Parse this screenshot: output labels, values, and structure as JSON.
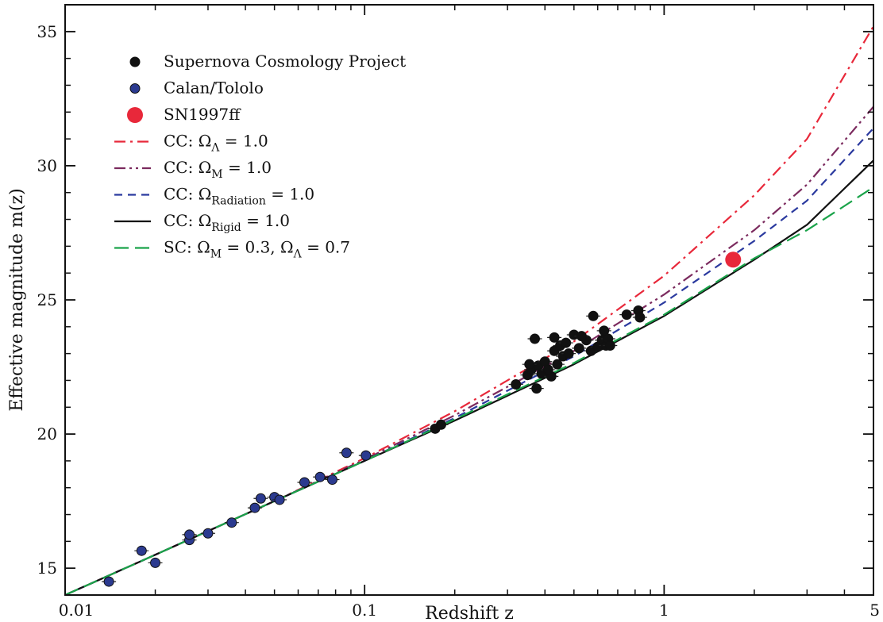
{
  "chart_data": {
    "type": "scatter",
    "xscale": "log",
    "xlim": [
      0.01,
      5
    ],
    "ylim": [
      14,
      36
    ],
    "xlabel": "Redshift z",
    "ylabel": "Effective magnitude m(z)",
    "x_ticks": [
      {
        "value": 0.01,
        "label": "0.01"
      },
      {
        "value": 0.1,
        "label": "0.1"
      },
      {
        "value": 1,
        "label": "1"
      },
      {
        "value": 5,
        "label": "5"
      }
    ],
    "y_ticks": [
      {
        "value": 15,
        "label": "15"
      },
      {
        "value": 20,
        "label": "20"
      },
      {
        "value": 25,
        "label": "25"
      },
      {
        "value": 30,
        "label": "30"
      },
      {
        "value": 35,
        "label": "35"
      }
    ],
    "grid": false,
    "legend_position": "top-left",
    "legend": [
      {
        "label": "Supernova Cosmology Project",
        "kind": "marker",
        "color": "#111111"
      },
      {
        "label": "Calan/Tololo",
        "kind": "marker",
        "color": "#2b3a8f"
      },
      {
        "label": "SN1997ff",
        "kind": "marker-large",
        "color": "#e8283a"
      },
      {
        "label_main": "CC: Ω",
        "label_sub": "Λ",
        "label_rest": " = 1.0",
        "kind": "line",
        "color": "#e8283a",
        "dash": "dashdot"
      },
      {
        "label_main": "CC: Ω",
        "label_sub": "M",
        "label_rest": " = 1.0",
        "kind": "line",
        "color": "#7b2a5e",
        "dash": "dashdotdot"
      },
      {
        "label_main": "CC: Ω",
        "label_sub": "Radiation",
        "label_rest": " = 1.0",
        "kind": "line",
        "color": "#2b3a9f",
        "dash": "dashed"
      },
      {
        "label_main": "CC: Ω",
        "label_sub": "Rigid",
        "label_rest": " = 1.0",
        "kind": "line",
        "color": "#111111",
        "dash": "solid"
      },
      {
        "label_main": "SC: Ω",
        "label_sub": "M",
        "label_rest": " = 0.3, Ω",
        "label_sub2": "Λ",
        "label_rest2": " = 0.7",
        "kind": "line",
        "color": "#1aa34a",
        "dash": "longdash"
      }
    ],
    "series": [
      {
        "name": "Supernova Cosmology Project",
        "kind": "points",
        "color": "#111111",
        "points": [
          [
            0.172,
            20.2
          ],
          [
            0.18,
            20.35
          ],
          [
            0.32,
            21.85
          ],
          [
            0.35,
            22.2
          ],
          [
            0.36,
            22.4
          ],
          [
            0.37,
            23.55
          ],
          [
            0.375,
            21.7
          ],
          [
            0.38,
            22.55
          ],
          [
            0.39,
            22.25
          ],
          [
            0.4,
            22.7
          ],
          [
            0.42,
            22.15
          ],
          [
            0.43,
            23.1
          ],
          [
            0.44,
            22.6
          ],
          [
            0.45,
            23.3
          ],
          [
            0.46,
            22.9
          ],
          [
            0.48,
            23.0
          ],
          [
            0.5,
            23.7
          ],
          [
            0.52,
            23.2
          ],
          [
            0.55,
            23.5
          ],
          [
            0.57,
            23.1
          ],
          [
            0.58,
            24.4
          ],
          [
            0.6,
            23.25
          ],
          [
            0.62,
            23.5
          ],
          [
            0.64,
            23.3
          ],
          [
            0.65,
            23.55
          ],
          [
            0.66,
            23.3
          ],
          [
            0.75,
            24.45
          ],
          [
            0.82,
            24.6
          ],
          [
            0.83,
            24.35
          ],
          [
            0.41,
            22.4
          ],
          [
            0.47,
            23.4
          ],
          [
            0.53,
            23.65
          ],
          [
            0.63,
            23.85
          ],
          [
            0.355,
            22.6
          ],
          [
            0.43,
            23.6
          ]
        ]
      },
      {
        "name": "Calan/Tololo",
        "kind": "points",
        "color": "#2b3a8f",
        "points": [
          [
            0.014,
            14.5
          ],
          [
            0.018,
            15.65
          ],
          [
            0.02,
            15.2
          ],
          [
            0.026,
            16.05
          ],
          [
            0.026,
            16.25
          ],
          [
            0.03,
            16.3
          ],
          [
            0.036,
            16.7
          ],
          [
            0.043,
            17.25
          ],
          [
            0.045,
            17.6
          ],
          [
            0.05,
            17.65
          ],
          [
            0.052,
            17.55
          ],
          [
            0.063,
            18.2
          ],
          [
            0.071,
            18.4
          ],
          [
            0.078,
            18.3
          ],
          [
            0.087,
            19.3
          ],
          [
            0.101,
            19.2
          ]
        ]
      },
      {
        "name": "SN1997ff",
        "kind": "points-large",
        "color": "#e8283a",
        "points": [
          [
            1.7,
            26.5
          ]
        ]
      },
      {
        "name": "CC: ΩΛ = 1.0",
        "kind": "line",
        "color": "#e8283a",
        "dash": "dashdot",
        "points": [
          [
            0.01,
            14.0
          ],
          [
            0.02,
            15.5
          ],
          [
            0.05,
            17.5
          ],
          [
            0.1,
            19.1
          ],
          [
            0.2,
            20.85
          ],
          [
            0.5,
            23.45
          ],
          [
            1,
            25.9
          ],
          [
            2,
            28.9
          ],
          [
            3,
            31.0
          ],
          [
            5,
            35.2
          ]
        ]
      },
      {
        "name": "CC: ΩM = 1.0",
        "kind": "line",
        "color": "#7b2a5e",
        "dash": "dashdotdot",
        "points": [
          [
            0.01,
            14.0
          ],
          [
            0.02,
            15.5
          ],
          [
            0.05,
            17.5
          ],
          [
            0.1,
            19.05
          ],
          [
            0.2,
            20.7
          ],
          [
            0.5,
            23.1
          ],
          [
            1,
            25.2
          ],
          [
            2,
            27.6
          ],
          [
            3,
            29.3
          ],
          [
            5,
            32.2
          ]
        ]
      },
      {
        "name": "CC: ΩRadiation = 1.0",
        "kind": "line",
        "color": "#2b3a9f",
        "dash": "dashed",
        "points": [
          [
            0.01,
            14.0
          ],
          [
            0.02,
            15.5
          ],
          [
            0.05,
            17.5
          ],
          [
            0.1,
            19.0
          ],
          [
            0.2,
            20.6
          ],
          [
            0.5,
            22.9
          ],
          [
            1,
            24.9
          ],
          [
            2,
            27.2
          ],
          [
            3,
            28.7
          ],
          [
            5,
            31.4
          ]
        ]
      },
      {
        "name": "CC: ΩRigid = 1.0",
        "kind": "line",
        "color": "#111111",
        "dash": "solid",
        "points": [
          [
            0.01,
            14.0
          ],
          [
            0.02,
            15.5
          ],
          [
            0.05,
            17.5
          ],
          [
            0.1,
            19.0
          ],
          [
            0.2,
            20.5
          ],
          [
            0.5,
            22.6
          ],
          [
            1,
            24.4
          ],
          [
            2,
            26.5
          ],
          [
            3,
            27.8
          ],
          [
            5,
            30.2
          ]
        ]
      },
      {
        "name": "SC: ΩM = 0.3, ΩΛ = 0.7",
        "kind": "line",
        "color": "#1aa34a",
        "dash": "longdash",
        "points": [
          [
            0.01,
            14.0
          ],
          [
            0.02,
            15.5
          ],
          [
            0.05,
            17.5
          ],
          [
            0.1,
            19.0
          ],
          [
            0.2,
            20.55
          ],
          [
            0.5,
            22.65
          ],
          [
            1,
            24.45
          ],
          [
            2,
            26.55
          ],
          [
            3,
            27.6
          ],
          [
            5,
            29.2
          ]
        ]
      }
    ]
  }
}
